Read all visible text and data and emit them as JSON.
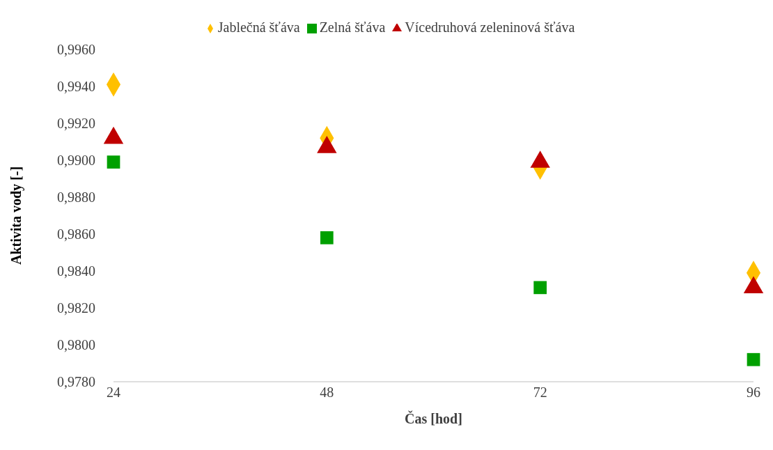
{
  "chart_data": {
    "type": "scatter",
    "xlabel": "Čas [hod]",
    "ylabel": "Aktivita vody [-]",
    "x": [
      24,
      48,
      72,
      96
    ],
    "series": [
      {
        "name": "Jablečná šťáva",
        "color": "#ffc000",
        "marker": "diamond",
        "values": [
          0.9941,
          0.9912,
          0.9896,
          0.9839
        ]
      },
      {
        "name": "Zelná šťáva",
        "color": "#00a000",
        "marker": "square",
        "values": [
          0.9899,
          0.9858,
          0.9831,
          0.9792
        ]
      },
      {
        "name": "Vícedruhová zeleninová šťáva",
        "color": "#c00000",
        "marker": "triangle",
        "values": [
          0.9912,
          0.9907,
          0.9899,
          0.9831
        ]
      }
    ],
    "xlim": [
      24,
      96
    ],
    "xticks": [
      24,
      48,
      72,
      96
    ],
    "ylim": [
      0.978,
      0.996
    ],
    "yticks": [
      {
        "value": 0.978,
        "label": "0,9780"
      },
      {
        "value": 0.98,
        "label": "0,9800"
      },
      {
        "value": 0.982,
        "label": "0,9820"
      },
      {
        "value": 0.984,
        "label": "0,9840"
      },
      {
        "value": 0.986,
        "label": "0,9860"
      },
      {
        "value": 0.988,
        "label": "0,9880"
      },
      {
        "value": 0.99,
        "label": "0,9900"
      },
      {
        "value": 0.992,
        "label": "0,9920"
      },
      {
        "value": 0.994,
        "label": "0,9940"
      },
      {
        "value": 0.996,
        "label": "0,9960"
      }
    ],
    "grid": false,
    "legend": "top"
  }
}
